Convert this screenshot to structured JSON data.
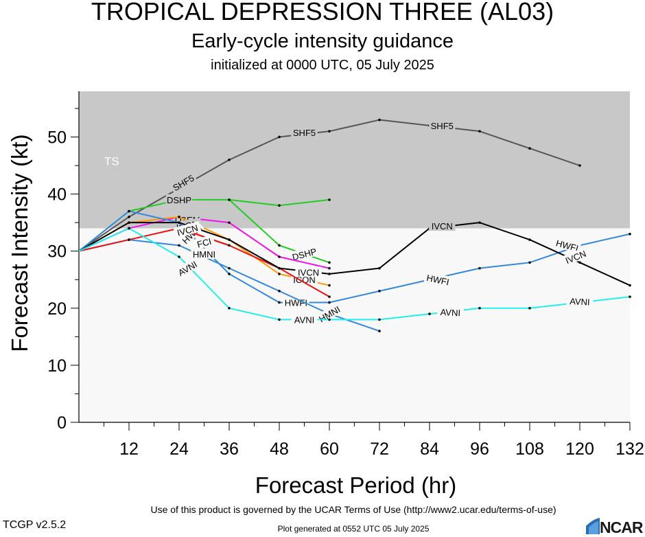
{
  "header": {
    "title": "TROPICAL DEPRESSION THREE (AL03)",
    "subtitle": "Early-cycle intensity guidance",
    "init": "initialized at 0000 UTC, 05 July 2025"
  },
  "footer": {
    "terms": "Use of this product is governed by the UCAR Terms of Use (http://www2.ucar.edu/terms-of-use)",
    "version": "TCGP v2.5.2",
    "generated": "Plot generated at 0552 UTC    05 July 2025",
    "logo": "NCAR"
  },
  "colors": {
    "ts_band": "#c8c8c8",
    "below_ts": "#f8f8f8"
  },
  "chart_data": {
    "type": "line",
    "title": "TROPICAL DEPRESSION THREE (AL03)",
    "xlabel": "Forecast Period (hr)",
    "ylabel": "Forecast Intensity (kt)",
    "xlim": [
      0,
      132
    ],
    "ylim": [
      0,
      58
    ],
    "xticks": [
      12,
      24,
      36,
      48,
      60,
      72,
      84,
      96,
      108,
      120,
      132
    ],
    "yticks": [
      0,
      10,
      20,
      30,
      40,
      50
    ],
    "bands": [
      {
        "label": "TS",
        "from": 34,
        "to": 58,
        "color": "#c8c8c8"
      }
    ],
    "series": [
      {
        "name": "SHF5",
        "color": "#555555",
        "x": [
          0,
          12,
          24,
          36,
          48,
          60,
          72,
          84,
          96,
          108,
          120
        ],
        "y": [
          30,
          36,
          41,
          46,
          50,
          51,
          53,
          52,
          51,
          48,
          45
        ],
        "labels": [
          {
            "x": 25,
            "y": 42,
            "angle": -30
          },
          {
            "x": 54,
            "y": 50.8,
            "angle": 0
          },
          {
            "x": 87,
            "y": 52,
            "angle": 0
          }
        ]
      },
      {
        "name": "DSHP",
        "color": "#22cc22",
        "x": [
          0,
          12,
          24,
          36,
          48,
          60
        ],
        "y": [
          30,
          37,
          39,
          39,
          38,
          39
        ],
        "labels": [
          {
            "x": 24,
            "y": 39,
            "angle": 0
          }
        ]
      },
      {
        "name": "DSHP",
        "color": "#22cc22",
        "x": [
          36,
          48,
          60
        ],
        "y": [
          39,
          31,
          28
        ],
        "labels": [
          {
            "x": 54,
            "y": 29.5,
            "angle": -15
          }
        ]
      },
      {
        "name": "LGEM",
        "color": "#ee11ee",
        "x": [
          0,
          12,
          24,
          36,
          48,
          60
        ],
        "y": [
          30,
          34,
          36,
          35,
          29,
          27
        ],
        "labels": [
          {
            "x": 26,
            "y": 35.5,
            "angle": 0
          }
        ]
      },
      {
        "name": "ICON",
        "color": "#ff9900",
        "x": [
          0,
          12,
          24,
          36,
          48,
          60
        ],
        "y": [
          30,
          35,
          36,
          32,
          26,
          24
        ],
        "labels": [
          {
            "x": 26,
            "y": 34.5,
            "angle": -10
          },
          {
            "x": 54,
            "y": 25,
            "angle": 0
          }
        ]
      },
      {
        "name": "HWFI",
        "color": "#3388dd",
        "x": [
          0,
          12,
          24,
          36,
          48,
          60,
          72,
          84,
          96,
          108,
          120,
          132
        ],
        "y": [
          30,
          37,
          35,
          26,
          21,
          21,
          23,
          25,
          27,
          28,
          31,
          33
        ],
        "labels": [
          {
            "x": 27,
            "y": 33,
            "angle": -45
          },
          {
            "x": 52,
            "y": 21,
            "angle": 0
          },
          {
            "x": 86,
            "y": 25,
            "angle": 12
          },
          {
            "x": 117,
            "y": 31,
            "angle": 15
          }
        ]
      },
      {
        "name": "HMNI",
        "color": "#3388dd",
        "x": [
          0,
          12,
          24,
          36,
          48,
          60,
          72
        ],
        "y": [
          30,
          32,
          31,
          27,
          23,
          19,
          16
        ],
        "labels": [
          {
            "x": 30,
            "y": 29.5,
            "angle": 0
          },
          {
            "x": 60,
            "y": 19,
            "angle": -30
          }
        ]
      },
      {
        "name": "HWFI",
        "color": "#ee1111",
        "x": [
          0,
          12,
          24,
          36,
          48,
          60
        ],
        "y": [
          30,
          32,
          34,
          31,
          27,
          22
        ],
        "labels": []
      },
      {
        "name": "FCI",
        "color": "#ee1111",
        "x": [
          24,
          36
        ],
        "y": [
          34,
          31
        ],
        "labels": [
          {
            "x": 30,
            "y": 31.5,
            "angle": -15
          }
        ]
      },
      {
        "name": "IVCN",
        "color": "#000000",
        "x": [
          0,
          12,
          24,
          36,
          48,
          60,
          72,
          84,
          96,
          108,
          120,
          132
        ],
        "y": [
          30,
          35,
          35,
          32,
          27,
          26,
          27,
          34,
          35,
          32,
          28,
          24
        ],
        "labels": [
          {
            "x": 26,
            "y": 33.7,
            "angle": -15
          },
          {
            "x": 55,
            "y": 26.3,
            "angle": 0
          },
          {
            "x": 87,
            "y": 34.4,
            "angle": 0
          },
          {
            "x": 119,
            "y": 29,
            "angle": -22
          }
        ]
      },
      {
        "name": "AVNI",
        "color": "#22eeee",
        "x": [
          0,
          12,
          24,
          36,
          48,
          60,
          72,
          84,
          96,
          108,
          120,
          132
        ],
        "y": [
          30,
          34,
          29,
          20,
          18,
          18,
          18,
          19,
          20,
          20,
          21,
          22
        ],
        "labels": [
          {
            "x": 26,
            "y": 27,
            "angle": -30
          },
          {
            "x": 54,
            "y": 18,
            "angle": 0
          },
          {
            "x": 89,
            "y": 19.3,
            "angle": 3
          },
          {
            "x": 120,
            "y": 21.2,
            "angle": 3
          }
        ]
      }
    ]
  }
}
